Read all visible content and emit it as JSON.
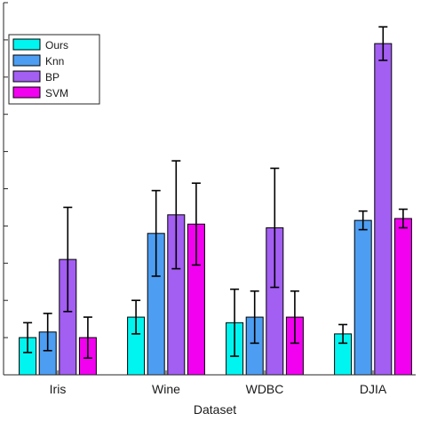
{
  "chart_data": {
    "type": "bar",
    "xlabel": "Dataset",
    "ylabel": "",
    "ylim": [
      0,
      1
    ],
    "categories": [
      "Iris",
      "Wine",
      "WDBC",
      "DJIA"
    ],
    "series": [
      {
        "name": "Ours",
        "color": "#00f5f0",
        "values": [
          0.1,
          0.155,
          0.14,
          0.11
        ],
        "errors": [
          0.04,
          0.045,
          0.09,
          0.025
        ]
      },
      {
        "name": "Knn",
        "color": "#4d9ef2",
        "values": [
          0.115,
          0.38,
          0.155,
          0.415
        ],
        "errors": [
          0.05,
          0.115,
          0.07,
          0.025
        ]
      },
      {
        "name": "BP",
        "color": "#a35ef2",
        "values": [
          0.31,
          0.43,
          0.395,
          0.89
        ],
        "errors": [
          0.14,
          0.145,
          0.16,
          0.045
        ]
      },
      {
        "name": "SVM",
        "color": "#f200f0",
        "values": [
          0.1,
          0.405,
          0.155,
          0.42
        ],
        "errors": [
          0.055,
          0.11,
          0.07,
          0.025
        ]
      }
    ],
    "error_bars": true,
    "grid": false,
    "legend_position": "top-left"
  }
}
